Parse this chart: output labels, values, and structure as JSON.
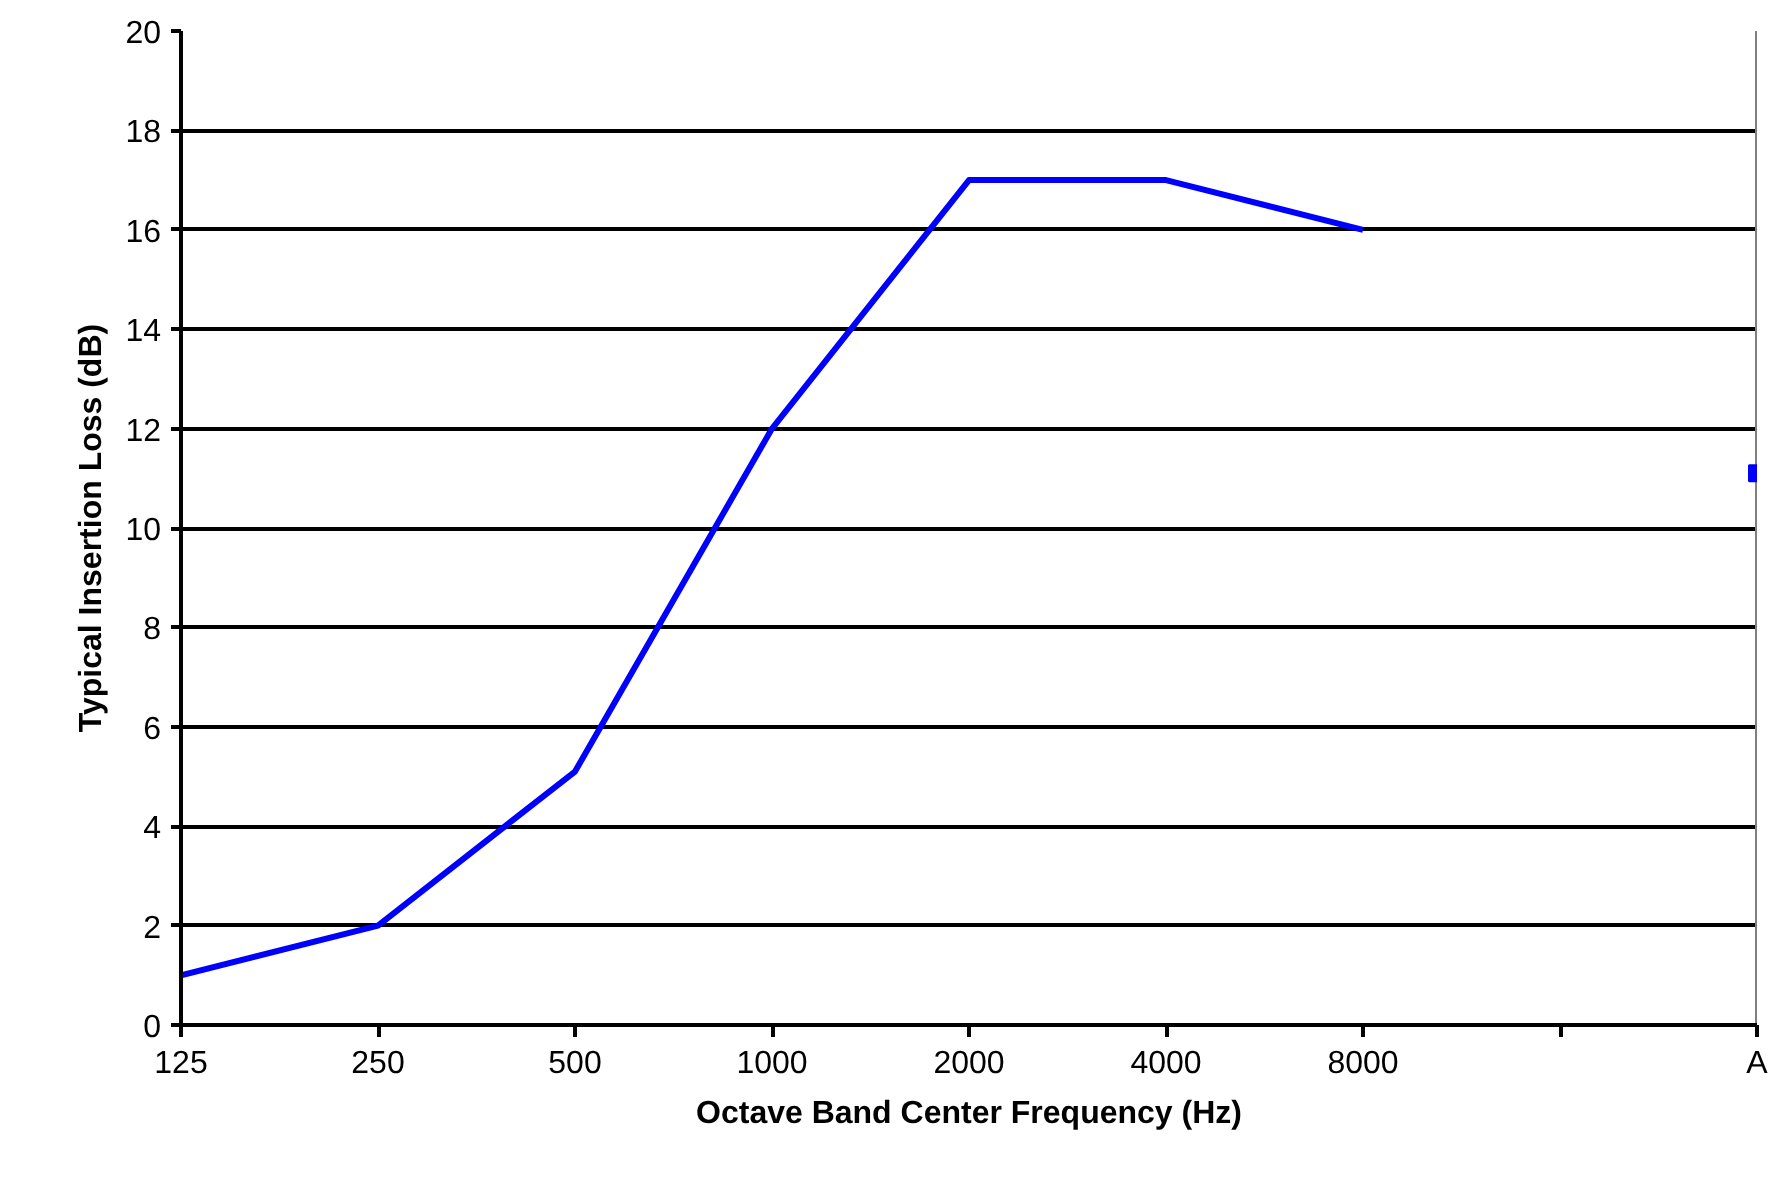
{
  "chart_data": {
    "type": "line",
    "xlabel": "Octave Band Center Frequency (Hz)",
    "ylabel": "Typical Insertion Loss (dB)",
    "categories": [
      "125",
      "250",
      "500",
      "1000",
      "2000",
      "4000",
      "8000",
      null,
      "A"
    ],
    "series": [
      {
        "color": "#0000ff",
        "values": [
          1.0,
          2.0,
          5.1,
          12.0,
          17.0,
          17.0,
          16.0,
          null,
          null
        ]
      },
      {
        "type": "scatter",
        "color": "#0000ff",
        "marker": "square",
        "values": [
          null,
          null,
          null,
          null,
          null,
          null,
          null,
          null,
          11.1
        ]
      }
    ],
    "ylim": [
      0,
      20
    ],
    "yticks": [
      0,
      2,
      4,
      6,
      8,
      10,
      12,
      14,
      16,
      18,
      20
    ],
    "grid": "y"
  }
}
